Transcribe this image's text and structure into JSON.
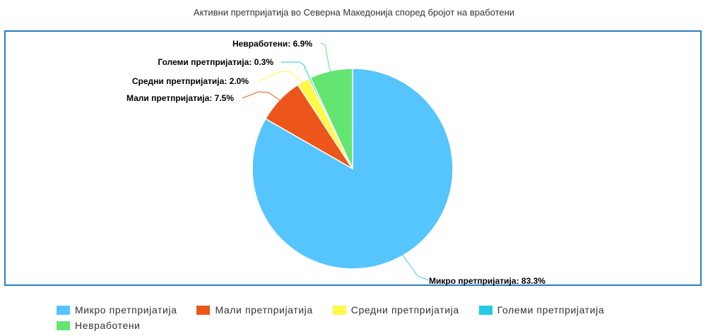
{
  "chart_data": {
    "type": "pie",
    "title": "Активни претпријатија во Северна Македонија според бројот на вработени",
    "slices": [
      {
        "name": "Микро претпријатија",
        "value": 83.3,
        "label": "Микро претпријатија: 83.3%",
        "color": "#56c4fd"
      },
      {
        "name": "Мали претпријатија",
        "value": 7.5,
        "label": "Мали претпријатија: 7.5%",
        "color": "#ed561b"
      },
      {
        "name": "Средни претпријатија",
        "value": 2.0,
        "label": "Средни претпријатија: 2.0%",
        "color": "#fffa45"
      },
      {
        "name": "Големи претпријатија",
        "value": 0.3,
        "label": "Големи претпријатија: 0.3%",
        "color": "#24cbe5"
      },
      {
        "name": "Невработени",
        "value": 6.9,
        "label": "Невработени: 6.9%",
        "color": "#64e572"
      }
    ],
    "legend": "bottom",
    "unit": "%"
  }
}
